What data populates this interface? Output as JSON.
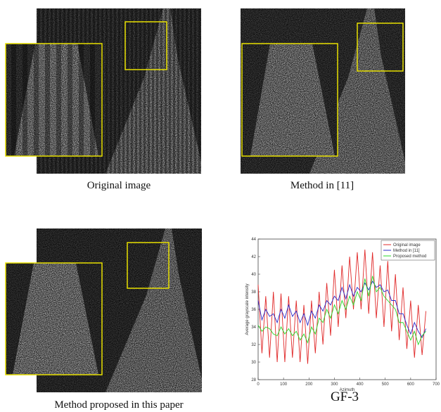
{
  "captions": [
    "Original image",
    "Method in [11]",
    "Method proposed in this paper",
    "GF-3"
  ],
  "chart_data": {
    "type": "line",
    "x_label": "Azimuth",
    "y_label": "Average grayscale intensity",
    "xlim": [
      0,
      700
    ],
    "xticks": [
      0,
      100,
      200,
      300,
      400,
      500,
      600,
      700
    ],
    "ylim": [
      28,
      44
    ],
    "yticks": [
      28,
      30,
      32,
      34,
      36,
      38,
      40,
      42,
      44
    ],
    "legend": "upper right",
    "x": [
      0,
      15,
      30,
      45,
      60,
      75,
      90,
      105,
      120,
      135,
      150,
      165,
      180,
      195,
      210,
      225,
      240,
      255,
      270,
      285,
      300,
      315,
      330,
      345,
      360,
      375,
      390,
      405,
      420,
      435,
      450,
      465,
      480,
      495,
      510,
      525,
      540,
      555,
      570,
      585,
      600,
      615,
      630,
      645,
      660
    ],
    "series": [
      {
        "name": "Original image",
        "color": "#e02828",
        "values": [
          38.8,
          31,
          37.5,
          30.5,
          38,
          30,
          37.8,
          30,
          37.5,
          30.5,
          37,
          30,
          36.5,
          29.8,
          37,
          31,
          38,
          32,
          39,
          33,
          40.5,
          34,
          41,
          35,
          42,
          36,
          42.5,
          36,
          42.8,
          35.5,
          42.5,
          35,
          41,
          34,
          41.5,
          33.5,
          40,
          32.5,
          38.5,
          31.5,
          37,
          30.5,
          36.5,
          30.8,
          35.8
        ]
      },
      {
        "name": "Method in [11]",
        "color": "#2828c8",
        "values": [
          37,
          34.8,
          36,
          35.2,
          35.5,
          34.5,
          36,
          35,
          36.5,
          35.2,
          35.8,
          34.5,
          35.5,
          34.2,
          35.8,
          35,
          36.5,
          35.8,
          37,
          36.5,
          37.5,
          37,
          38.5,
          37.2,
          38.8,
          37.5,
          38.5,
          38,
          39,
          38.2,
          39.2,
          38.5,
          38.8,
          38,
          38.2,
          37,
          37,
          35.5,
          35.5,
          34.2,
          33.2,
          34.5,
          33.5,
          32.8,
          33.8
        ]
      },
      {
        "name": "Proposed method",
        "color": "#28d828",
        "values": [
          34.2,
          33.5,
          34,
          33.8,
          33.2,
          33,
          34,
          33.2,
          33.8,
          33,
          33.5,
          32.5,
          33.2,
          32.2,
          34,
          33.2,
          35,
          34.5,
          36,
          35,
          36.5,
          35.5,
          37,
          36,
          37.5,
          36.5,
          38,
          37,
          39.5,
          37.5,
          39.8,
          38,
          38.5,
          37.5,
          37,
          36.5,
          36,
          34.5,
          34.5,
          33.5,
          32.5,
          33.5,
          32,
          33,
          33.5
        ]
      }
    ]
  }
}
